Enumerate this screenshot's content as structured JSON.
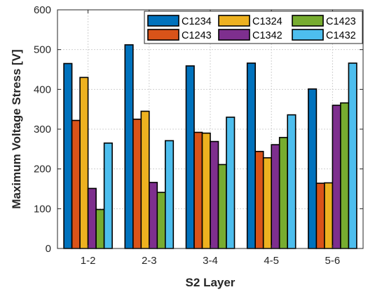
{
  "chart_data": {
    "type": "bar",
    "title": "",
    "xlabel": "S2 Layer",
    "ylabel": "Maximum Voltage Stress [V]",
    "ylim": [
      0,
      600
    ],
    "yticks": [
      0,
      100,
      200,
      300,
      400,
      500,
      600
    ],
    "grid": true,
    "legend_position": "top-right",
    "categories": [
      "1-2",
      "2-3",
      "3-4",
      "4-5",
      "5-6"
    ],
    "series": [
      {
        "name": "C1234",
        "color": "#0072BD",
        "values": [
          465,
          512,
          459,
          466,
          401
        ]
      },
      {
        "name": "C1243",
        "color": "#D95319",
        "values": [
          322,
          325,
          292,
          244,
          164
        ]
      },
      {
        "name": "C1324",
        "color": "#EDB120",
        "values": [
          430,
          345,
          290,
          228,
          165
        ]
      },
      {
        "name": "C1342",
        "color": "#7E2F8E",
        "values": [
          151,
          166,
          269,
          261,
          360
        ]
      },
      {
        "name": "C1423",
        "color": "#77AC30",
        "values": [
          98,
          141,
          211,
          279,
          366
        ]
      },
      {
        "name": "C1432",
        "color": "#4DBEEE",
        "values": [
          265,
          271,
          330,
          336,
          466
        ]
      }
    ]
  }
}
